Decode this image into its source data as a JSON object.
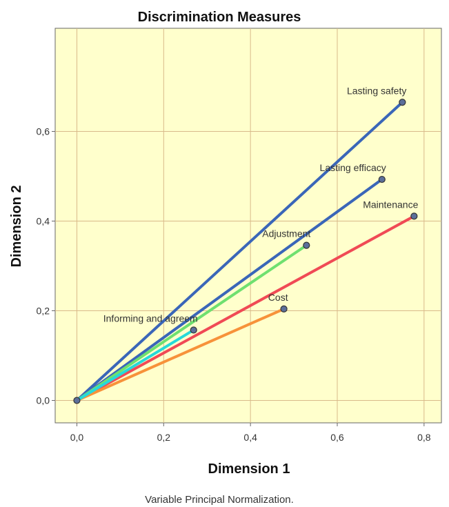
{
  "chart_data": {
    "type": "line",
    "title": "Discrimination Measures",
    "xlabel": "Dimension 1",
    "ylabel": "Dimension 2",
    "footnote": "Variable Principal Normalization.",
    "xlim": [
      -0.05,
      0.84
    ],
    "ylim": [
      -0.05,
      0.83
    ],
    "xticks": [
      0.0,
      0.2,
      0.4,
      0.6,
      0.8
    ],
    "xtick_labels": [
      "0,0",
      "0,2",
      "0,4",
      "0,6",
      "0,8"
    ],
    "yticks": [
      0.0,
      0.2,
      0.4,
      0.6
    ],
    "ytick_labels": [
      "0,0",
      "0,2",
      "0,4",
      "0,6"
    ],
    "grid": true,
    "background": "#ffffcc",
    "grid_color": "#d9b98a",
    "origin": [
      0.0,
      0.0
    ],
    "series": [
      {
        "name": "Lasting safety",
        "x": 0.75,
        "y": 0.665,
        "color": "#3a66b8"
      },
      {
        "name": "Lasting efficacy",
        "x": 0.703,
        "y": 0.493,
        "color": "#3a66b8"
      },
      {
        "name": "Maintenance",
        "x": 0.777,
        "y": 0.411,
        "color": "#f04a55"
      },
      {
        "name": "Adjustment",
        "x": 0.529,
        "y": 0.346,
        "color": "#6fe06f"
      },
      {
        "name": "Cost",
        "x": 0.477,
        "y": 0.204,
        "color": "#f7923a"
      },
      {
        "name": "Informing and agreem",
        "x": 0.269,
        "y": 0.157,
        "color": "#26d9d9"
      }
    ]
  }
}
